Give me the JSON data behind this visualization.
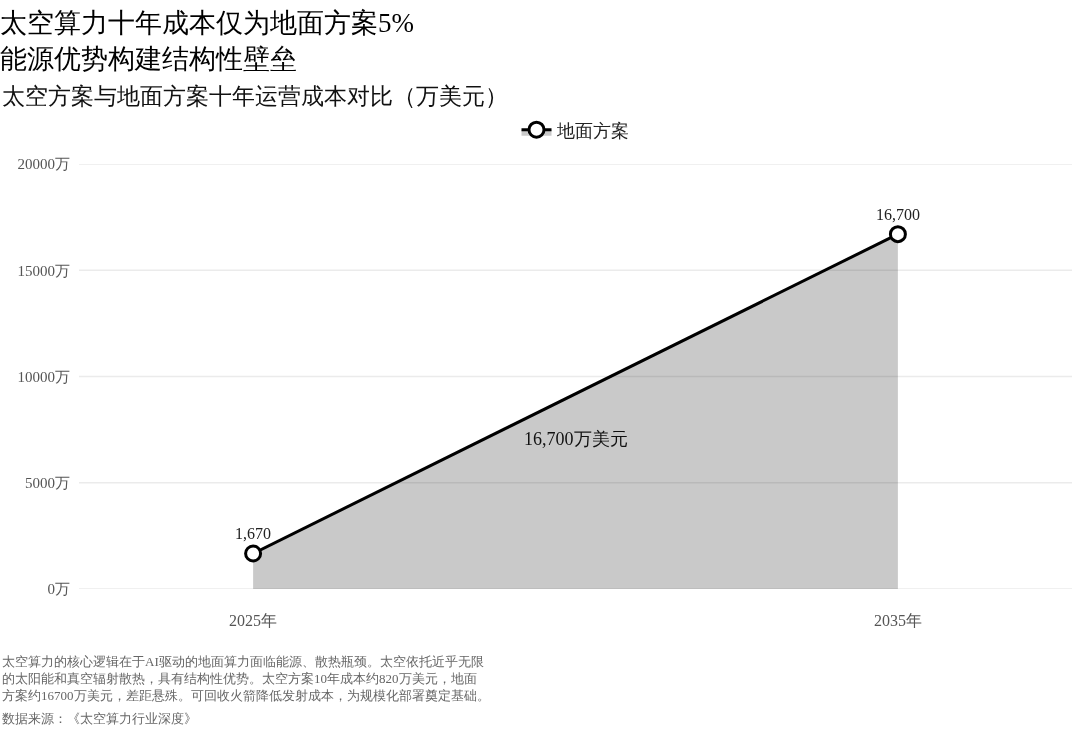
{
  "chart_data": {
    "type": "area",
    "title": "太空算力十年成本仅为地面方案5%\n能源优势构建结构性壁垒",
    "subtitle": "太空方案与地面方案十年运营成本对比（万美元）",
    "categories": [
      "2025年",
      "2035年"
    ],
    "series": [
      {
        "name": "地面方案",
        "color": "#000000",
        "values": [
          1670,
          16700
        ],
        "value_labels": [
          "1,670",
          "16,700"
        ]
      }
    ],
    "ylim": [
      0,
      20000
    ],
    "yticks": [
      {
        "value": 0,
        "label": "0万"
      },
      {
        "value": 5000,
        "label": "5000万"
      },
      {
        "value": 10000,
        "label": "10000万"
      },
      {
        "value": 15000,
        "label": "15000万"
      },
      {
        "value": 20000,
        "label": "20000万"
      }
    ],
    "grid": "y",
    "legend": "top",
    "marker": "circle",
    "annotations": [
      "16,700万美元",
      "太空算力的核心逻辑在于AI驱动的地面算力面临能源、散热瓶颈。太空依托近乎无限的太阳能和真空辐射散热，具有结构性优势。太空方案10年成本约820万美元，地面方案约16700万美元，差距悬殊。可回收火箭降低发射成本，为规模化部署奠定基础。",
      "数据来源：《太空算力行业深度》"
    ]
  }
}
